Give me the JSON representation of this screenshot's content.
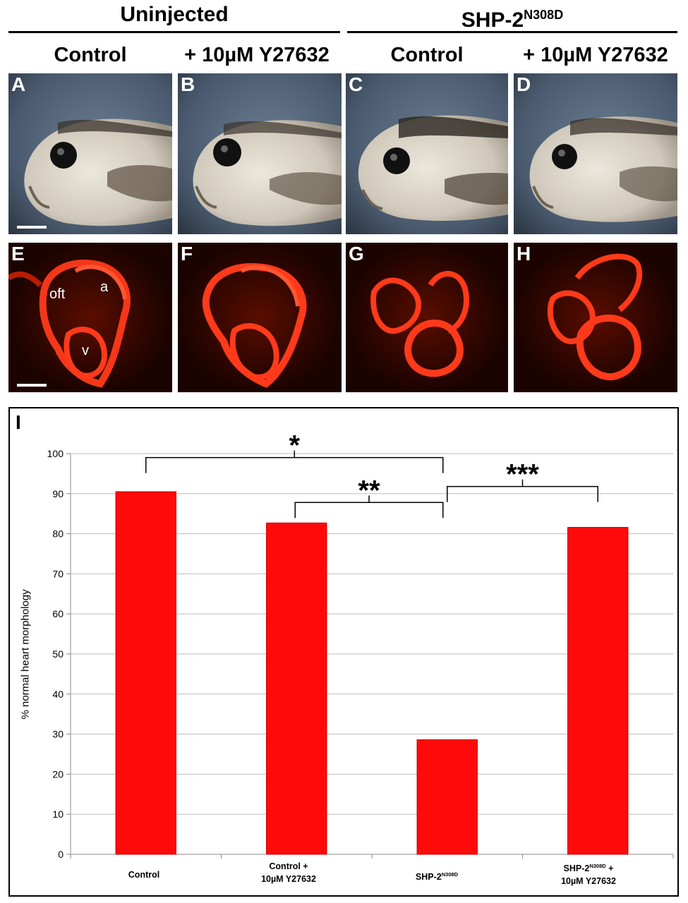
{
  "groups": {
    "uninjected": "Uninjected",
    "shp2_base": "SHP-2",
    "shp2_sup": "N308D"
  },
  "columns": [
    "Control",
    "+ 10µM Y27632",
    "Control",
    "+ 10µM Y27632"
  ],
  "panels": {
    "top": [
      "A",
      "B",
      "C",
      "D"
    ],
    "bottom": [
      "E",
      "F",
      "G",
      "H"
    ],
    "chart": "I"
  },
  "heart_labels": {
    "oft": "oft",
    "a": "a",
    "v": "v"
  },
  "colors": {
    "bar": "#ff0a0a",
    "fluor": "#ff3a1a",
    "grid": "#bdbdbd"
  },
  "chart_data": {
    "type": "bar",
    "categories": [
      "Control",
      "Control + 10µM Y27632",
      "SHP-2N308D",
      "SHP-2N308D + 10µM Y27632"
    ],
    "values": [
      90.5,
      82.7,
      28.6,
      81.6
    ],
    "ylabel": "% normal heart morphology",
    "xlabel": "",
    "ylim": [
      0,
      100
    ],
    "yticks": [
      0,
      10,
      20,
      30,
      40,
      50,
      60,
      70,
      80,
      90,
      100
    ],
    "grid": true,
    "significance": [
      {
        "from": 0,
        "to": 2,
        "label": "*"
      },
      {
        "from": 1,
        "to": 2,
        "label": "**"
      },
      {
        "from": 2,
        "to": 3,
        "label": "***"
      }
    ]
  }
}
